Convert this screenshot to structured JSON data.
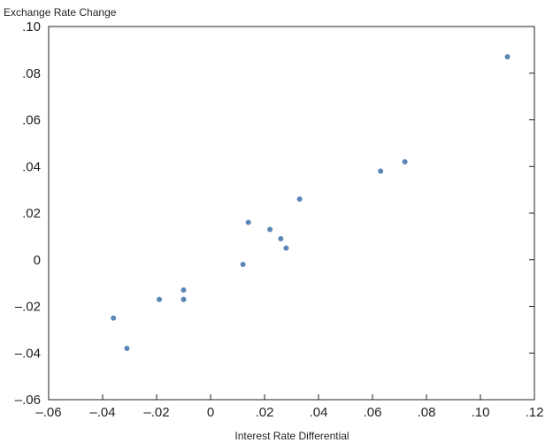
{
  "chart_data": {
    "type": "scatter",
    "title": "",
    "ylabel": "Exchange Rate Change",
    "xlabel": "Interest Rate Differential",
    "xlim": [
      -0.06,
      0.12
    ],
    "ylim": [
      -0.06,
      0.1
    ],
    "xticks": [
      -0.06,
      -0.04,
      -0.02,
      0,
      0.02,
      0.04,
      0.06,
      0.08,
      0.1,
      0.12
    ],
    "xtick_labels": [
      "–.06",
      "–.04",
      "–.02",
      "0",
      ".02",
      ".04",
      ".06",
      ".08",
      ".10",
      ".12"
    ],
    "yticks": [
      -0.06,
      -0.04,
      -0.02,
      0,
      0.02,
      0.04,
      0.06,
      0.08,
      0.1
    ],
    "ytick_labels": [
      "–.06",
      "–.04",
      "–.02",
      "0",
      ".02",
      ".04",
      ".06",
      ".08",
      ".10"
    ],
    "grid": false,
    "marker_color": "#5b86b7",
    "points": [
      {
        "x": -0.036,
        "y": -0.025
      },
      {
        "x": -0.031,
        "y": -0.038
      },
      {
        "x": -0.019,
        "y": -0.017
      },
      {
        "x": -0.01,
        "y": -0.013
      },
      {
        "x": -0.01,
        "y": -0.017
      },
      {
        "x": 0.012,
        "y": -0.002
      },
      {
        "x": 0.014,
        "y": 0.016
      },
      {
        "x": 0.022,
        "y": 0.013
      },
      {
        "x": 0.026,
        "y": 0.009
      },
      {
        "x": 0.028,
        "y": 0.005
      },
      {
        "x": 0.033,
        "y": 0.026
      },
      {
        "x": 0.063,
        "y": 0.038
      },
      {
        "x": 0.072,
        "y": 0.042
      },
      {
        "x": 0.11,
        "y": 0.087
      }
    ]
  }
}
